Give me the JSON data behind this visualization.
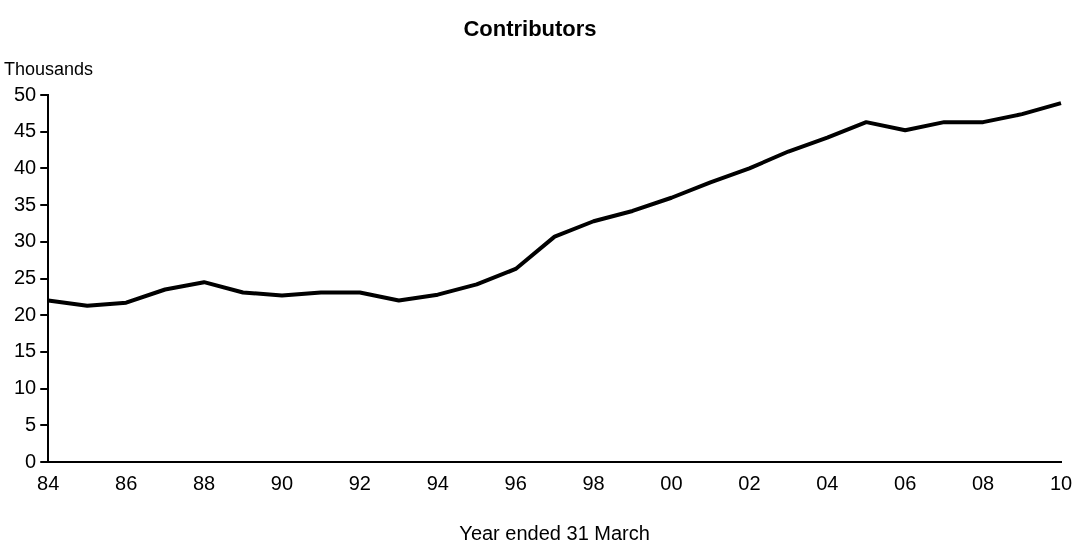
{
  "chart_data": {
    "type": "line",
    "title": "Contributors",
    "ylabel": "Thousands",
    "xlabel": "Year ended 31 March",
    "categories": [
      "84",
      null,
      "86",
      null,
      "88",
      null,
      "90",
      null,
      "92",
      null,
      "94",
      null,
      "96",
      null,
      "98",
      null,
      "00",
      null,
      "02",
      null,
      "04",
      null,
      "06",
      null,
      "08",
      null,
      "10"
    ],
    "series": [
      {
        "color": "#000000",
        "values": [
          22,
          21.3,
          21.7,
          23.5,
          24.5,
          23.1,
          22.7,
          23.1,
          23.1,
          22,
          22.8,
          24.2,
          26.3,
          30.7,
          32.8,
          34.2,
          36,
          38.1,
          40,
          42.3,
          44.2,
          46.3,
          45.2,
          46.3,
          46.3,
          47.4,
          48.9
        ]
      }
    ],
    "ylim": [
      0,
      50
    ],
    "yticks": [
      0,
      5,
      10,
      15,
      20,
      25,
      30,
      35,
      40,
      45,
      50
    ],
    "grid": false,
    "legend": false,
    "marker": "none",
    "line_style": "solid"
  }
}
